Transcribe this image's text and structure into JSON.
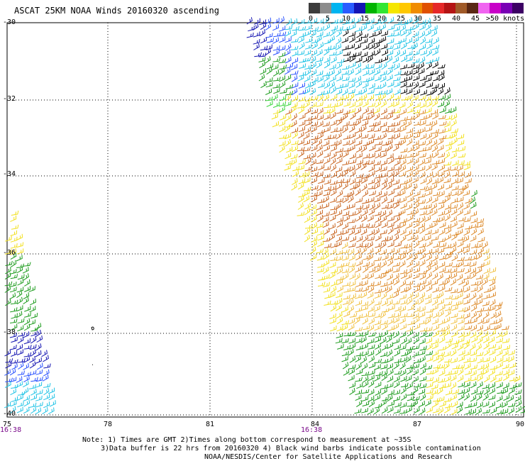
{
  "title": "ASCAT 25KM NOAA Winds 20160320 ascending",
  "legend": {
    "colors": [
      "#3c3c3c",
      "#8c8c8c",
      "#00b4f0",
      "#2a5cff",
      "#1414b4",
      "#00b400",
      "#32e632",
      "#f5e600",
      "#ffc800",
      "#f08c00",
      "#e05000",
      "#e62828",
      "#b41414",
      "#a05a28",
      "#5a2814",
      "#f064f0",
      "#c800c8",
      "#7800b4",
      "#3c0064"
    ],
    "labels": [
      "0",
      "5",
      "10",
      "15",
      "20",
      "25",
      "30",
      "35",
      "40",
      "45",
      ">50 knots"
    ]
  },
  "lat_labels": [
    "-30",
    "-32",
    "-34",
    "-36",
    "-38",
    "-40"
  ],
  "lon_labels": [
    "75",
    "78",
    "81",
    "84",
    "87",
    "90"
  ],
  "time_labels": [
    "16:38",
    "16:38"
  ],
  "notes": {
    "line1": "Note: 1) Times are GMT 2)Times along bottom correspond to measurement at ~35S",
    "line2": "3)Data buffer is 22 hrs from 20160320 4) Black wind barbs indicate possible contamination",
    "line3": "NOAA/NESDIS/Center for Satellite Applications and Research"
  },
  "wind_palette": {
    "black": "#000000",
    "cyan": "#22c4e6",
    "blue": "#2a52ff",
    "navy": "#1010b0",
    "green": "#1a9a1a",
    "lightgreen": "#3ad43a",
    "yellow": "#f2e01e",
    "gold": "#f0c040",
    "orange": "#dd8a2a",
    "darkorange": "#c8641e"
  }
}
